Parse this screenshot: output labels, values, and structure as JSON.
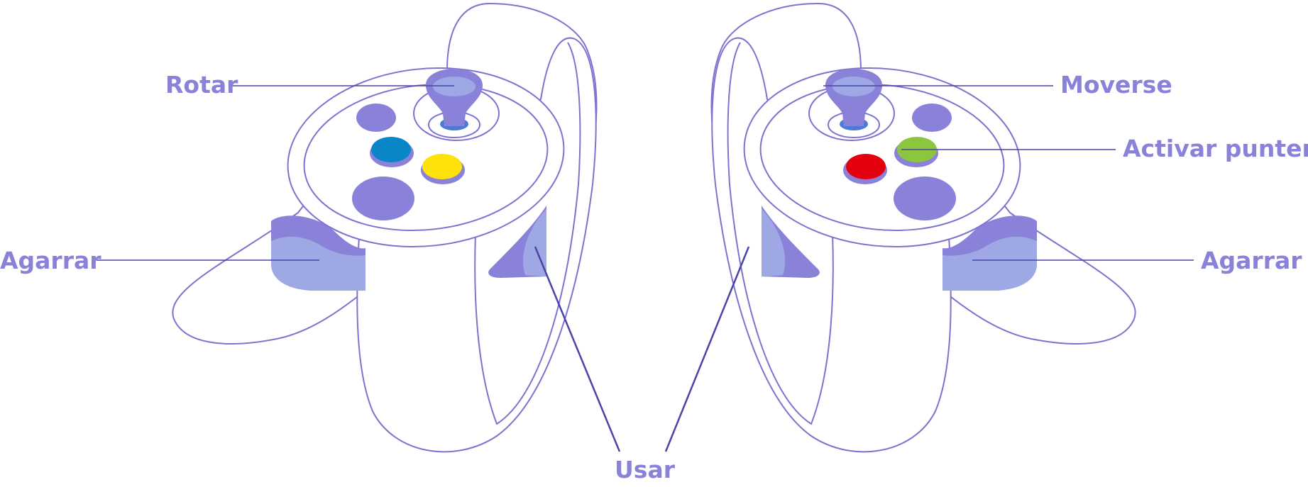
{
  "labels": {
    "rotar": "Rotar",
    "moverse": "Moverse",
    "activar_puntero": "Activar puntero",
    "agarrar_left": "Agarrar",
    "agarrar_right": "Agarrar",
    "usar": "Usar"
  },
  "colors": {
    "label": "#8a82d8",
    "outline": "#7d73cf",
    "button": "#8a82d8",
    "grip_light": "#9da8e4",
    "blue_button": "#0a86c8",
    "yellow_button": "#ffe20a",
    "red_button": "#e3000f",
    "green_button": "#8cc63e"
  }
}
